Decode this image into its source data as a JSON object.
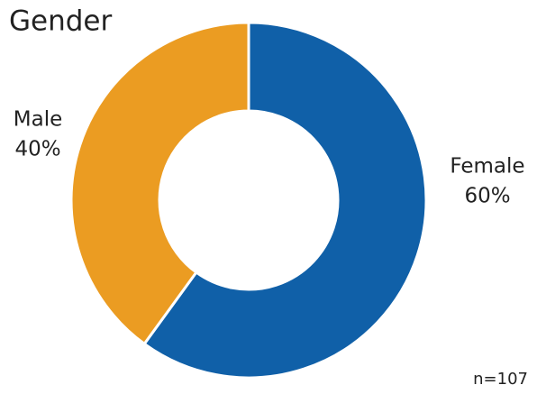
{
  "chart_data": {
    "type": "donut",
    "title": "Gender",
    "categories": [
      "Female",
      "Male"
    ],
    "values": [
      60,
      40
    ],
    "value_labels": [
      "60%",
      "40%"
    ],
    "colors": [
      "#1060a8",
      "#eb9c22"
    ],
    "annotation": "n=107"
  }
}
